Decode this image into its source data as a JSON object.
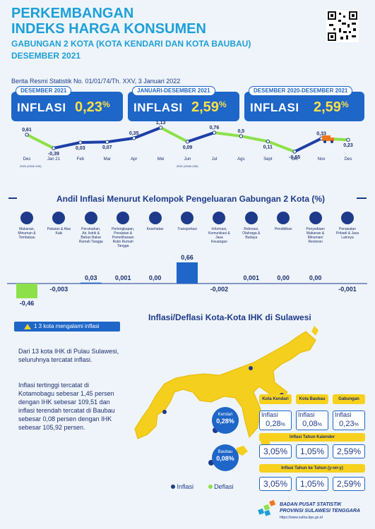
{
  "header": {
    "title_line1": "PERKEMBANGAN",
    "title_line2": "INDEKS HARGA KONSUMEN",
    "subtitle": "GABUNGAN 2 KOTA (KOTA KENDARI DAN KOTA BAUBAU)",
    "period": "DESEMBER 2021",
    "release": "Berita Resmi Statistik No. 01/01/74/Th. XXV, 3 Januari 2022"
  },
  "cards": [
    {
      "tag": "DESEMBER 2021",
      "label": "INFLASI",
      "value": "0,23",
      "unit": "%"
    },
    {
      "tag": "JANUARI-DESEMBER 2021",
      "label": "INFLASI",
      "value": "2,59",
      "unit": "%"
    },
    {
      "tag": "DESEMBER 2020-DESEMBER 2021",
      "label": "INFLASI",
      "value": "2,59",
      "unit": "%"
    }
  ],
  "chart_data": [
    {
      "type": "line",
      "categories": [
        "Des",
        "Jan 21",
        "Feb",
        "Mar",
        "Apr",
        "Mei",
        "Jun",
        "Jul",
        "Ags",
        "Sept",
        "Okt",
        "Nov",
        "Des"
      ],
      "values": [
        0.61,
        -0.39,
        0.03,
        0.07,
        0.35,
        1.13,
        0.09,
        0.76,
        0.5,
        0.11,
        -0.65,
        0.33,
        0.23
      ],
      "labels": [
        "0,61",
        "-0,39",
        "0,03",
        "0,07",
        "0,35",
        "1,13",
        "0,09",
        "0,76",
        "0,5",
        "0,11",
        "-0,65",
        "0,33",
        "0,23"
      ],
      "base_left": "2020 (2018=100)",
      "base_right": "2021 (2018=100)",
      "colors": {
        "up": "#1e3fa8",
        "down": "#8ee04a"
      }
    },
    {
      "type": "bar",
      "title": "Andil Inflasi Menurut Kelompok Pengeluaran Gabungan 2 Kota (%)",
      "categories": [
        "Makanan, Minuman & Tembakau",
        "Pakaian & Alas Kaki",
        "Perumahan, Air, listrik & Bahan Bakar Rumah Tangga",
        "Perlengkapan, Peralatan & Pemeliharaan Rutin Rumah Tangga",
        "Kesehatan",
        "Transportasi",
        "Informasi, Komunikasi & Jasa Keuangan",
        "Rekreasi, Olahraga & Budaya",
        "Pendidikan",
        "Penyediaan Makanan & Minuman/ Restoran",
        "Perawatan Pribadi & Jasa Lainnya"
      ],
      "values": [
        -0.46,
        -0.003,
        0.03,
        0.001,
        0.0,
        0.66,
        -0.002,
        0.001,
        0.0,
        0.0,
        -0.001
      ],
      "labels": [
        "-0,46",
        "-0,003",
        "0,03",
        "0,001",
        "0,00",
        "0,66",
        "-0,002",
        "0,001",
        "0,00",
        "0,00",
        "-0,001"
      ],
      "colors": {
        "positive": "#1e66c8",
        "negative": "#8ee04a"
      }
    }
  ],
  "sulawesi": {
    "badge": "1 3 kota mengalami inflasi",
    "title": "Inflasi/Deflasi Kota-Kota IHK di Sulawesi",
    "para1": "Dari 13 kota IHK di Pulau Sulawesi, seluruhnya tercatat inflasi.",
    "para2": "Inflasi tertinggi tercatat di Kotamobagu sebesar 1,45 persen dengan IHK sebesar 109,51 dan inflasi terendah tercatat di Baubau sebesar 0,08 persen dengan IHK sebesar 105,92 persen.",
    "pins": [
      {
        "name": "Kendari",
        "value": "0,28%"
      },
      {
        "name": "Baubau",
        "value": "0,08%"
      }
    ],
    "legend": {
      "inflasi": "Inflasi",
      "deflasi": "Deflasi"
    }
  },
  "cities": {
    "headers": [
      "Kota Kendari",
      "Kota Baubau",
      "Gabungan"
    ],
    "monthly": [
      {
        "label": "Inflasi",
        "value": "0,28",
        "unit": "%"
      },
      {
        "label": "Inflasi",
        "value": "0,08",
        "unit": "%"
      },
      {
        "label": "Inflasi",
        "value": "0,23",
        "unit": "%"
      }
    ],
    "ytd_label": "Inflasi Tahun Kalender",
    "ytd": [
      "3,05%",
      "1,05%",
      "2,59%"
    ],
    "yoy_label": "Inflasi Tahun ke Tahun (y-on-y)",
    "yoy": [
      "3,05%",
      "1,05%",
      "2,59%"
    ]
  },
  "footer": {
    "org1": "BADAN PUSAT STATISTIK",
    "org2": "PROVINSI SULAWESI TENGGARA",
    "url": "https://www.sultra.bps.go.id"
  }
}
